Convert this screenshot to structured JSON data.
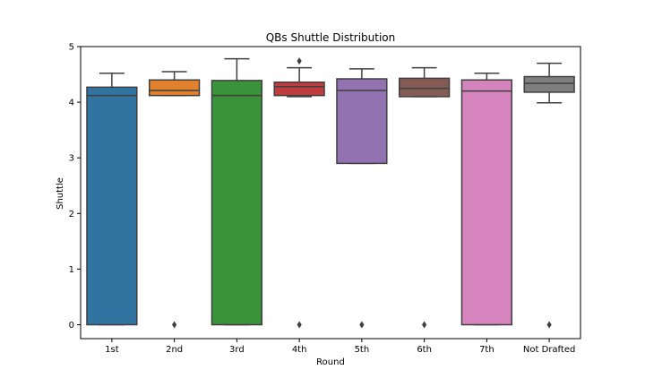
{
  "chart_data": {
    "type": "boxplot",
    "title": "QBs Shuttle Distribution",
    "xlabel": "Round",
    "ylabel": "Shuttle",
    "ylim": [
      -0.25,
      5.0
    ],
    "yticks": [
      0,
      1,
      2,
      3,
      4,
      5
    ],
    "grid": false,
    "legend": "none",
    "categories": [
      "1st",
      "2nd",
      "3rd",
      "4th",
      "5th",
      "6th",
      "7th",
      "Not Drafted"
    ],
    "boxes": [
      {
        "category": "1st",
        "color": "#3274a1",
        "whisker_low": 0.0,
        "q1": 0.0,
        "median": 4.12,
        "q3": 4.27,
        "whisker_high": 4.52,
        "outliers": []
      },
      {
        "category": "2nd",
        "color": "#e1812c",
        "whisker_low": 4.12,
        "q1": 4.12,
        "median": 4.21,
        "q3": 4.4,
        "whisker_high": 4.55,
        "outliers": [
          0.0
        ]
      },
      {
        "category": "3rd",
        "color": "#3a923a",
        "whisker_low": 0.0,
        "q1": 0.0,
        "median": 4.12,
        "q3": 4.39,
        "whisker_high": 4.78,
        "outliers": []
      },
      {
        "category": "4th",
        "color": "#c03d3e",
        "whisker_low": 4.1,
        "q1": 4.12,
        "median": 4.28,
        "q3": 4.36,
        "whisker_high": 4.62,
        "outliers": [
          4.74,
          0.0
        ]
      },
      {
        "category": "5th",
        "color": "#9372b2",
        "whisker_low": 2.9,
        "q1": 2.9,
        "median": 4.21,
        "q3": 4.42,
        "whisker_high": 4.6,
        "outliers": [
          0.0
        ]
      },
      {
        "category": "6th",
        "color": "#845b53",
        "whisker_low": 4.1,
        "q1": 4.1,
        "median": 4.25,
        "q3": 4.43,
        "whisker_high": 4.62,
        "outliers": [
          0.0
        ]
      },
      {
        "category": "7th",
        "color": "#d684bd",
        "whisker_low": 0.0,
        "q1": 0.0,
        "median": 4.2,
        "q3": 4.4,
        "whisker_high": 4.52,
        "outliers": []
      },
      {
        "category": "Not Drafted",
        "color": "#7f7f7f",
        "whisker_low": 3.99,
        "q1": 4.18,
        "median": 4.34,
        "q3": 4.46,
        "whisker_high": 4.7,
        "outliers": [
          0.0
        ]
      }
    ]
  }
}
